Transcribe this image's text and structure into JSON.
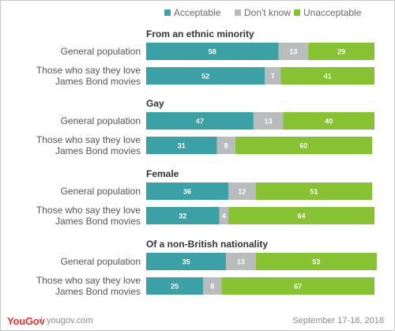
{
  "chart_data": {
    "type": "bar",
    "stacked": "horizontal",
    "xlim": [
      0,
      100
    ],
    "legend_placement": "top-right",
    "legend": [
      "Acceptable",
      "Don't know",
      "Unacceptable"
    ],
    "colors": {
      "Acceptable": "#3ba1a6",
      "Don't know": "#b9bcbc",
      "Unacceptable": "#86c232"
    },
    "groups": [
      {
        "title": "From an ethnic minority",
        "rows": [
          {
            "label": [
              "General population"
            ],
            "values": [
              58,
              13,
              29
            ]
          },
          {
            "label": [
              "Those who say they love",
              "James Bond movies"
            ],
            "values": [
              52,
              7,
              41
            ]
          }
        ]
      },
      {
        "title": "Gay",
        "rows": [
          {
            "label": [
              "General population"
            ],
            "values": [
              47,
              13,
              40
            ]
          },
          {
            "label": [
              "Those who say they love",
              "James Bond movies"
            ],
            "values": [
              31,
              8,
              60
            ]
          }
        ]
      },
      {
        "title": "Female",
        "rows": [
          {
            "label": [
              "General population"
            ],
            "values": [
              36,
              12,
              51
            ]
          },
          {
            "label": [
              "Those who say they love",
              "James Bond movies"
            ],
            "values": [
              32,
              4,
              64
            ]
          }
        ]
      },
      {
        "title": "Of a non-British nationality",
        "rows": [
          {
            "label": [
              "General population"
            ],
            "values": [
              35,
              13,
              53
            ]
          },
          {
            "label": [
              "Those who say they love",
              "James Bond movies"
            ],
            "values": [
              25,
              8,
              67
            ]
          }
        ]
      }
    ]
  },
  "footer": {
    "brand": "YouGov",
    "separator": "|",
    "url": "yougov.com",
    "date": "September 17-18, 2018"
  }
}
